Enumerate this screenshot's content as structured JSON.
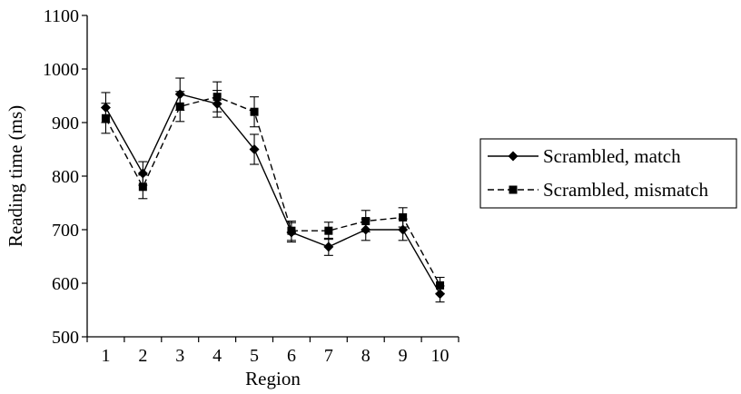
{
  "chart_data": {
    "type": "line",
    "title": "",
    "xlabel": "Region",
    "ylabel": "Reading time (ms)",
    "categories": [
      "1",
      "2",
      "3",
      "4",
      "5",
      "6",
      "7",
      "8",
      "9",
      "10"
    ],
    "ylim": [
      500,
      1100
    ],
    "yticks": [
      "500",
      "600",
      "700",
      "800",
      "900",
      "1000",
      "1100"
    ],
    "grid": false,
    "legend_position": "right",
    "series": [
      {
        "name": "Scrambled, match",
        "marker": "diamond",
        "line_style": "solid",
        "values": [
          928,
          805,
          953,
          935,
          850,
          695,
          668,
          700,
          700,
          580
        ],
        "errors": [
          28,
          22,
          30,
          25,
          28,
          18,
          16,
          20,
          20,
          15
        ]
      },
      {
        "name": "Scrambled, mismatch",
        "marker": "square",
        "line_style": "dashed",
        "values": [
          908,
          780,
          930,
          948,
          920,
          698,
          698,
          716,
          723,
          596
        ],
        "errors": [
          28,
          22,
          28,
          28,
          28,
          18,
          16,
          20,
          18,
          15
        ]
      }
    ],
    "colors": {
      "line": "#000000"
    }
  }
}
